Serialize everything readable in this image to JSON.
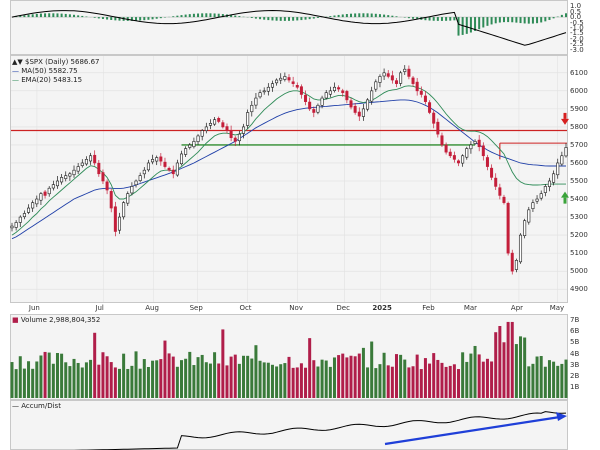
{
  "chart_data": {
    "type": "line",
    "title": "$SPX (Daily) 5686.67",
    "legend": [
      {
        "name": "$SPX (Daily) 5686.67",
        "color": "#000000"
      },
      {
        "name": "MA(50) 5582.75",
        "color": "#1f3fa8"
      },
      {
        "name": "EMA(20) 5483.15",
        "color": "#2e8b57"
      }
    ],
    "price_axis": {
      "ticks": [
        "6100",
        "6000",
        "5900",
        "5800",
        "5700",
        "5600",
        "5500",
        "5400",
        "5300",
        "5200",
        "5100",
        "5000",
        "4900"
      ],
      "ylim": [
        4840,
        6160
      ]
    },
    "macd_axis": {
      "ticks": [
        "1.0",
        "0.5",
        "0.0",
        "-0.5",
        "-1.0",
        "-1.5",
        "-2.0",
        "-2.5",
        "-3.0"
      ]
    },
    "volume": {
      "label": "Volume 2,988,804,352",
      "ticks": [
        "7B",
        "6B",
        "5B",
        "4B",
        "3B",
        "2B",
        "1B"
      ]
    },
    "accum": {
      "label": "Accum/Dist"
    },
    "x_labels": [
      "Jun",
      "Jul",
      "Aug",
      "Sep",
      "Oct",
      "Nov",
      "Dec",
      "2025",
      "Feb",
      "Mar",
      "Apr",
      "May"
    ],
    "resistance_level": 5780,
    "support_level": 5700,
    "colors": {
      "resistance": "#cc2222",
      "support": "#2e8b2e",
      "ma50": "#1f3fa8",
      "ema20": "#2e8b57",
      "up_bar": "#3a7a3a",
      "down_bar": "#b01e4a",
      "trend": "#1f3fd8",
      "down_arrow": "#d62020",
      "up_arrow": "#3aa33a"
    },
    "series_close": [
      5250,
      5270,
      5300,
      5320,
      5350,
      5380,
      5400,
      5430,
      5420,
      5460,
      5480,
      5500,
      5520,
      5530,
      5540,
      5560,
      5580,
      5600,
      5620,
      5640,
      5600,
      5540,
      5500,
      5450,
      5350,
      5220,
      5300,
      5380,
      5430,
      5470,
      5500,
      5530,
      5560,
      5600,
      5620,
      5630,
      5610,
      5580,
      5560,
      5540,
      5600,
      5650,
      5680,
      5700,
      5720,
      5750,
      5780,
      5800,
      5820,
      5840,
      5830,
      5800,
      5780,
      5740,
      5720,
      5760,
      5800,
      5880,
      5920,
      5960,
      5990,
      6000,
      6020,
      6040,
      6060,
      6070,
      6080,
      6060,
      6040,
      6020,
      5980,
      5940,
      5900,
      5880,
      5920,
      5960,
      5990,
      6000,
      6020,
      6010,
      5990,
      5950,
      5910,
      5880,
      5860,
      5900,
      5950,
      6000,
      6050,
      6080,
      6100,
      6080,
      6060,
      6040,
      6100,
      6120,
      6080,
      6040,
      6000,
      5980,
      5940,
      5880,
      5820,
      5760,
      5700,
      5660,
      5640,
      5620,
      5600,
      5640,
      5680,
      5700,
      5720,
      5690,
      5640,
      5580,
      5520,
      5470,
      5420,
      5380,
      5100,
      5000,
      5060,
      5200,
      5280,
      5340,
      5380,
      5400,
      5430,
      5470,
      5500,
      5540,
      5600,
      5640,
      5686
    ],
    "series_ma50": [
      5180,
      5190,
      5205,
      5220,
      5235,
      5250,
      5265,
      5280,
      5295,
      5310,
      5325,
      5340,
      5355,
      5370,
      5385,
      5400,
      5410,
      5420,
      5430,
      5440,
      5450,
      5455,
      5458,
      5460,
      5460,
      5458,
      5458,
      5460,
      5465,
      5470,
      5478,
      5486,
      5494,
      5502,
      5510,
      5518,
      5526,
      5534,
      5542,
      5550,
      5560,
      5570,
      5580,
      5590,
      5600,
      5612,
      5624,
      5636,
      5648,
      5660,
      5672,
      5684,
      5696,
      5708,
      5720,
      5735,
      5750,
      5765,
      5780,
      5795,
      5808,
      5820,
      5832,
      5844,
      5856,
      5866,
      5876,
      5884,
      5890,
      5896,
      5900,
      5904,
      5906,
      5908,
      5910,
      5912,
      5914,
      5916,
      5918,
      5920,
      5922,
      5924,
      5926,
      5928,
      5930,
      5932,
      5934,
      5936,
      5938,
      5940,
      5942,
      5944,
      5946,
      5948,
      5950,
      5950,
      5948,
      5944,
      5938,
      5930,
      5920,
      5908,
      5894,
      5878,
      5860,
      5842,
      5824,
      5806,
      5788,
      5770,
      5752,
      5734,
      5716,
      5700,
      5686,
      5672,
      5660,
      5650,
      5640,
      5632,
      5624,
      5616,
      5608,
      5600,
      5596,
      5592,
      5590,
      5588,
      5586,
      5584,
      5583,
      5583,
      5583,
      5583,
      5583
    ],
    "series_ema20": [
      5200,
      5215,
      5235,
      5255,
      5275,
      5300,
      5320,
      5345,
      5365,
      5390,
      5410,
      5430,
      5450,
      5470,
      5490,
      5510,
      5530,
      5550,
      5570,
      5585,
      5580,
      5565,
      5545,
      5520,
      5480,
      5420,
      5400,
      5400,
      5410,
      5425,
      5440,
      5460,
      5480,
      5500,
      5520,
      5540,
      5555,
      5560,
      5560,
      5555,
      5565,
      5580,
      5600,
      5620,
      5640,
      5660,
      5685,
      5710,
      5730,
      5750,
      5760,
      5765,
      5765,
      5760,
      5755,
      5760,
      5770,
      5790,
      5815,
      5845,
      5870,
      5895,
      5915,
      5935,
      5955,
      5970,
      5985,
      5995,
      6000,
      6000,
      5995,
      5985,
      5970,
      5955,
      5950,
      5950,
      5955,
      5960,
      5968,
      5975,
      5975,
      5970,
      5962,
      5950,
      5940,
      5935,
      5940,
      5948,
      5960,
      5975,
      5990,
      6000,
      6005,
      6008,
      6015,
      6025,
      6028,
      6025,
      6018,
      6010,
      5998,
      5980,
      5958,
      5932,
      5902,
      5872,
      5846,
      5822,
      5800,
      5786,
      5778,
      5776,
      5776,
      5772,
      5762,
      5746,
      5724,
      5700,
      5676,
      5650,
      5600,
      5550,
      5515,
      5495,
      5484,
      5480,
      5478,
      5478,
      5479,
      5481,
      5483,
      5483,
      5483,
      5483,
      5483
    ]
  }
}
